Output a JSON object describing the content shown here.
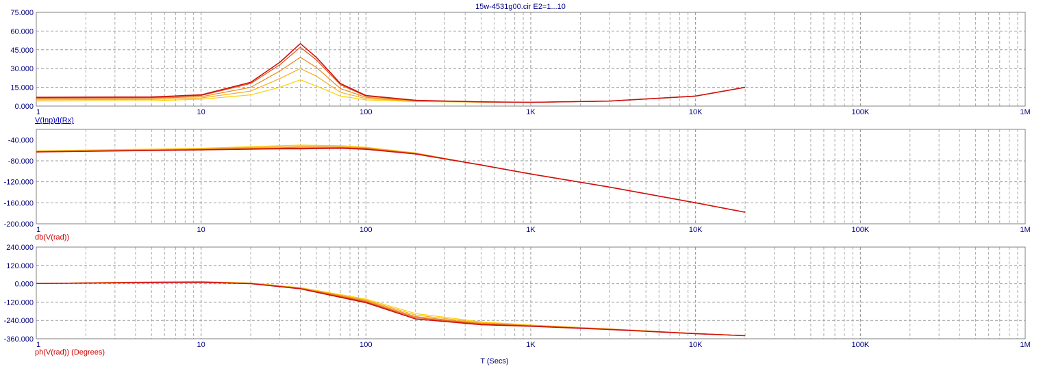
{
  "window": {
    "title": "15w-4531g00.cir E2=1...10"
  },
  "colors": {
    "axis_text": "#000080",
    "grid": "#808080",
    "frame": "#808080",
    "panel1_label": "#0000c0",
    "panel2_label": "#d00000",
    "panel3_label": "#d00000",
    "series": [
      "#ffd000",
      "#f4b020",
      "#e88818",
      "#e05010",
      "#d01010",
      "#b80000"
    ]
  },
  "x_axis": {
    "label": "T (Secs)",
    "scale": "log",
    "range": [
      1,
      1000000
    ],
    "tick_values": [
      1,
      10,
      100,
      1000,
      10000,
      100000,
      1000000
    ],
    "tick_labels": [
      "1",
      "10",
      "100",
      "1K",
      "10K",
      "100K",
      "1M"
    ]
  },
  "chart_data": [
    {
      "type": "line",
      "ylabel": "V(Inp)/I(Rx)",
      "ylim": [
        0,
        75
      ],
      "y_tick_values": [
        0,
        15,
        30,
        45,
        60,
        75
      ],
      "y_tick_labels": [
        "0.000",
        "15.000",
        "30.000",
        "45.000",
        "60.000",
        "75.000"
      ],
      "x_scale": "log",
      "xlim": [
        1,
        1000000
      ],
      "grid": true,
      "series": [
        {
          "x": [
            1,
            5,
            10,
            20,
            30,
            40,
            50,
            70,
            100,
            200,
            500,
            1000,
            3000,
            10000,
            20000
          ],
          "y": [
            4,
            4.3,
            5.5,
            9,
            15,
            21,
            16,
            8,
            5,
            3.6,
            3.1,
            3,
            4,
            8,
            15
          ]
        },
        {
          "x": [
            1,
            5,
            10,
            20,
            30,
            40,
            50,
            70,
            100,
            200,
            500,
            1000,
            3000,
            10000,
            20000
          ],
          "y": [
            5,
            5.3,
            6.5,
            12,
            22,
            30,
            24,
            11,
            6,
            4,
            3.2,
            3,
            4,
            8,
            15
          ]
        },
        {
          "x": [
            1,
            5,
            10,
            20,
            30,
            40,
            50,
            70,
            100,
            200,
            500,
            1000,
            3000,
            10000,
            20000
          ],
          "y": [
            6,
            6.3,
            7.5,
            15,
            28,
            39,
            31,
            14,
            7,
            4.2,
            3.3,
            3,
            4,
            8,
            15
          ]
        },
        {
          "x": [
            1,
            5,
            10,
            20,
            30,
            40,
            50,
            70,
            100,
            200,
            500,
            1000,
            3000,
            10000,
            20000
          ],
          "y": [
            6.5,
            6.8,
            8.5,
            18,
            33,
            47,
            37,
            17,
            8,
            4.5,
            3.4,
            3,
            4,
            8,
            15
          ]
        },
        {
          "x": [
            1,
            5,
            10,
            20,
            30,
            40,
            50,
            70,
            100,
            200,
            500,
            1000,
            3000,
            10000,
            20000
          ],
          "y": [
            7,
            7.3,
            9,
            19,
            35,
            50,
            39,
            18,
            8.5,
            4.6,
            3.4,
            3,
            4,
            8,
            15
          ]
        }
      ]
    },
    {
      "type": "line",
      "ylabel": "db(V(rad))",
      "ylim": [
        -200,
        -20
      ],
      "y_tick_values": [
        -200,
        -160,
        -120,
        -80,
        -40
      ],
      "y_tick_labels": [
        "-200.000",
        "-160.000",
        "-120.000",
        "-80.000",
        "-40.000"
      ],
      "x_scale": "log",
      "xlim": [
        1,
        1000000
      ],
      "grid": true,
      "series": [
        {
          "x": [
            1,
            10,
            30,
            40,
            70,
            100,
            200,
            500,
            1000,
            3000,
            10000,
            20000
          ],
          "y": [
            -61,
            -56,
            -51,
            -50,
            -51,
            -54,
            -65,
            -88,
            -105,
            -130,
            -160,
            -178
          ]
        },
        {
          "x": [
            1,
            10,
            30,
            40,
            70,
            100,
            200,
            500,
            1000,
            3000,
            10000,
            20000
          ],
          "y": [
            -62,
            -57,
            -53,
            -52,
            -52,
            -55,
            -65,
            -88,
            -105,
            -130,
            -160,
            -178
          ]
        },
        {
          "x": [
            1,
            10,
            30,
            40,
            70,
            100,
            200,
            500,
            1000,
            3000,
            10000,
            20000
          ],
          "y": [
            -62,
            -58,
            -55,
            -54,
            -54,
            -56,
            -66,
            -88,
            -105,
            -130,
            -160,
            -178
          ]
        },
        {
          "x": [
            1,
            10,
            30,
            40,
            70,
            100,
            200,
            500,
            1000,
            3000,
            10000,
            20000
          ],
          "y": [
            -63,
            -59,
            -56,
            -56,
            -55,
            -57,
            -66,
            -88,
            -105,
            -130,
            -160,
            -178
          ]
        },
        {
          "x": [
            1,
            10,
            30,
            40,
            70,
            100,
            200,
            500,
            1000,
            3000,
            10000,
            20000
          ],
          "y": [
            -63,
            -59,
            -57,
            -57,
            -56,
            -58,
            -67,
            -88,
            -105,
            -130,
            -160,
            -178
          ]
        }
      ]
    },
    {
      "type": "line",
      "ylabel": "ph(V(rad)) (Degrees)",
      "ylim": [
        -360,
        240
      ],
      "y_tick_values": [
        -360,
        -240,
        -120,
        0,
        120,
        240
      ],
      "y_tick_labels": [
        "-360.000",
        "-240.000",
        "-120.000",
        "0.000",
        "120.000",
        "240.000"
      ],
      "x_scale": "log",
      "xlim": [
        1,
        1000000
      ],
      "grid": true,
      "series": [
        {
          "x": [
            1,
            5,
            10,
            20,
            40,
            100,
            200,
            500,
            1000,
            3000,
            10000,
            20000
          ],
          "y": [
            2,
            12,
            15,
            5,
            -25,
            -100,
            -195,
            -250,
            -270,
            -295,
            -325,
            -340
          ]
        },
        {
          "x": [
            1,
            5,
            10,
            20,
            40,
            100,
            200,
            500,
            1000,
            3000,
            10000,
            20000
          ],
          "y": [
            2,
            11,
            13,
            4,
            -27,
            -106,
            -205,
            -255,
            -272,
            -296,
            -325,
            -340
          ]
        },
        {
          "x": [
            1,
            5,
            10,
            20,
            40,
            100,
            200,
            500,
            1000,
            3000,
            10000,
            20000
          ],
          "y": [
            2,
            10,
            12,
            3,
            -29,
            -112,
            -215,
            -260,
            -274,
            -297,
            -326,
            -340
          ]
        },
        {
          "x": [
            1,
            5,
            10,
            20,
            40,
            100,
            200,
            500,
            1000,
            3000,
            10000,
            20000
          ],
          "y": [
            2,
            9,
            11,
            2,
            -31,
            -118,
            -222,
            -264,
            -276,
            -298,
            -326,
            -340
          ]
        },
        {
          "x": [
            1,
            5,
            10,
            20,
            40,
            100,
            200,
            500,
            1000,
            3000,
            10000,
            20000
          ],
          "y": [
            2,
            8,
            10,
            1,
            -33,
            -124,
            -230,
            -268,
            -278,
            -299,
            -327,
            -340
          ]
        }
      ]
    }
  ]
}
